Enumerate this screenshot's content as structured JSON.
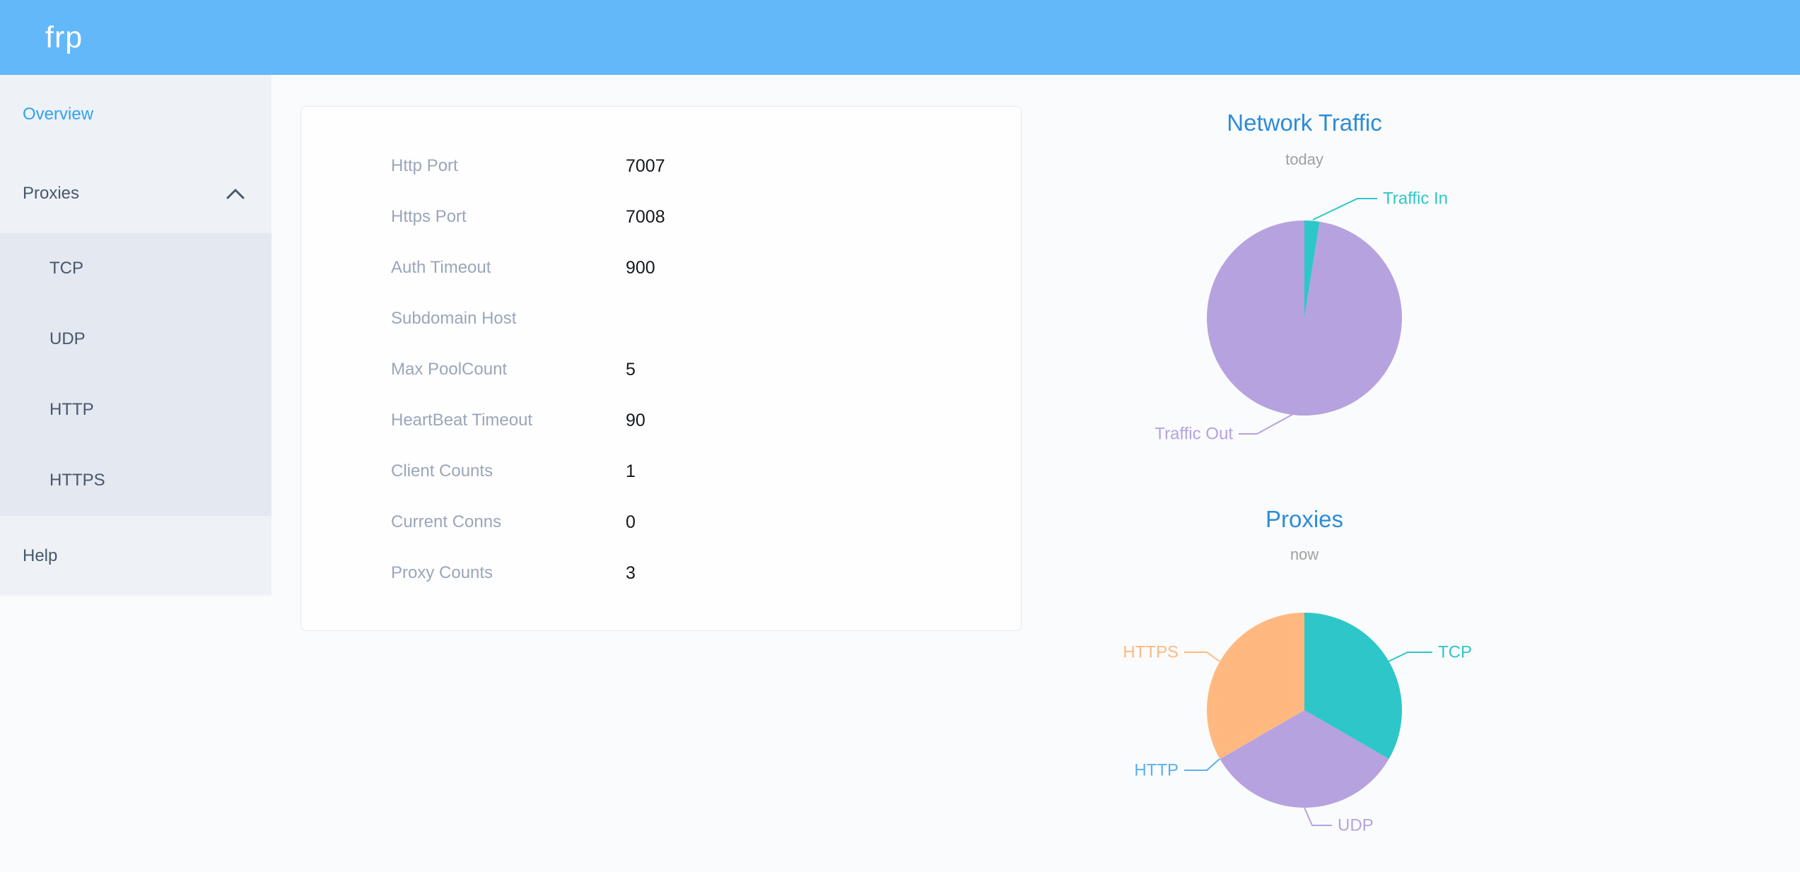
{
  "header": {
    "logo": "frp"
  },
  "sidebar": {
    "items": [
      {
        "label": "Overview",
        "active": true
      },
      {
        "label": "Proxies",
        "expanded": true,
        "children": [
          {
            "label": "TCP"
          },
          {
            "label": "UDP"
          },
          {
            "label": "HTTP"
          },
          {
            "label": "HTTPS"
          }
        ]
      },
      {
        "label": "Help"
      }
    ]
  },
  "overview": {
    "rows": [
      {
        "label": "Http Port",
        "value": "7007"
      },
      {
        "label": "Https Port",
        "value": "7008"
      },
      {
        "label": "Auth Timeout",
        "value": "900"
      },
      {
        "label": "Subdomain Host",
        "value": ""
      },
      {
        "label": "Max PoolCount",
        "value": "5"
      },
      {
        "label": "HeartBeat Timeout",
        "value": "90"
      },
      {
        "label": "Client Counts",
        "value": "1"
      },
      {
        "label": "Current Conns",
        "value": "0"
      },
      {
        "label": "Proxy Counts",
        "value": "3"
      }
    ]
  },
  "chart_data": [
    {
      "type": "pie",
      "title": "Network Traffic",
      "subtitle": "today",
      "legend_position": "callout-labels",
      "series": [
        {
          "name": "Traffic In",
          "value": 2.5,
          "color": "#2ec7c9"
        },
        {
          "name": "Traffic Out",
          "value": 97.5,
          "color": "#b6a2de"
        }
      ]
    },
    {
      "type": "pie",
      "title": "Proxies",
      "subtitle": "now",
      "legend_position": "callout-labels",
      "series": [
        {
          "name": "TCP",
          "value": 1,
          "color": "#2ec7c9"
        },
        {
          "name": "UDP",
          "value": 1,
          "color": "#b6a2de"
        },
        {
          "name": "HTTP",
          "value": 0,
          "color": "#5ab1ef"
        },
        {
          "name": "HTTPS",
          "value": 1,
          "color": "#ffb980"
        }
      ]
    }
  ],
  "colors": {
    "header_bg": "#63b8fa",
    "sidebar_bg": "#eef1f6",
    "submenu_bg": "#e4e8f1",
    "sidebar_text": "#48576a",
    "sidebar_active": "#2ea2f8",
    "chart_title": "#2d8cd7",
    "config_label": "#9aa6ba",
    "config_value": "#15181d"
  }
}
